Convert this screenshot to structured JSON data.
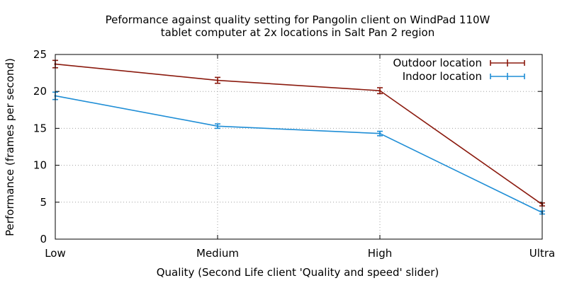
{
  "chart_data": {
    "type": "line",
    "title_lines": [
      "Peformance against quality setting for Pangolin client on WindPad 110W",
      "tablet computer at 2x locations in Salt Pan 2 region"
    ],
    "xlabel": "Quality (Second Life client 'Quality and speed' slider)",
    "ylabel": "Performance (frames per second)",
    "categories": [
      "Low",
      "Medium",
      "High",
      "Ultra"
    ],
    "ylim": [
      0,
      25
    ],
    "yticks": [
      0,
      5,
      10,
      15,
      20,
      25
    ],
    "grid": true,
    "legend_position": "top-right",
    "series": [
      {
        "name": "Outdoor location",
        "color": "#8b1a0e",
        "values": [
          23.7,
          21.5,
          20.1,
          4.7
        ],
        "errors": [
          0.5,
          0.4,
          0.4,
          0.2
        ]
      },
      {
        "name": "Indoor location",
        "color": "#1f8ed6",
        "values": [
          19.4,
          15.3,
          14.3,
          3.6
        ],
        "errors": [
          0.5,
          0.3,
          0.3,
          0.2
        ]
      }
    ]
  }
}
